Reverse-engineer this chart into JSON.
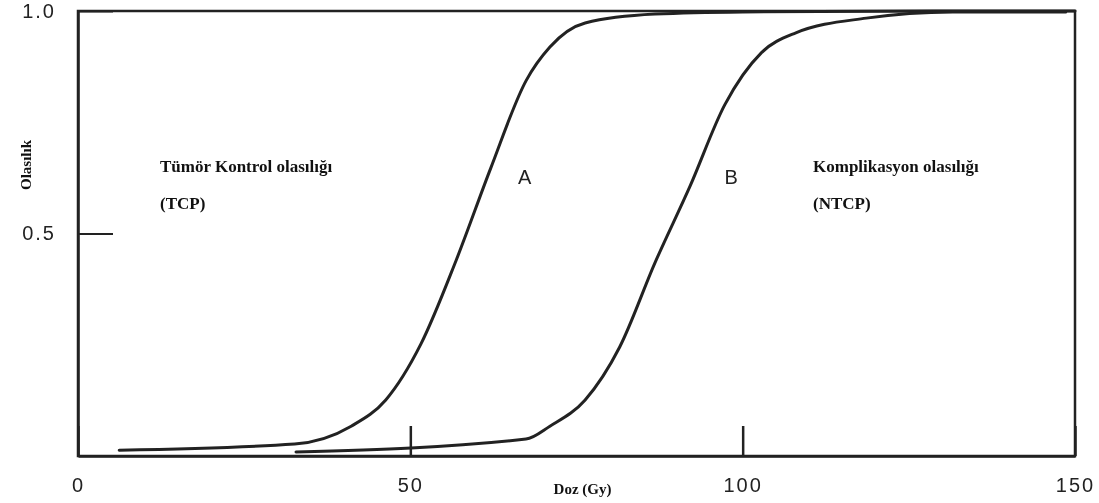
{
  "chart_data": {
    "type": "line",
    "xlabel": "Doz (Gy)",
    "ylabel": "Olasılık",
    "xlim": [
      0,
      150
    ],
    "ylim": [
      0,
      1
    ],
    "xticks": [
      0,
      50,
      100,
      150
    ],
    "yticks": [
      {
        "value": 0.5,
        "label": "0.5"
      },
      {
        "value": 1,
        "label": "1.0"
      }
    ],
    "grid": false,
    "marker": "none",
    "line_style": "solid",
    "annotations": [
      "Tümör Kontrol olasılığı",
      "(TCP)",
      "Komplikasyon olasılığı",
      "(NTCP)"
    ],
    "series": [
      {
        "name": "A",
        "color": "#222222",
        "x": [
          6.2,
          32.6,
          41.1,
          46.3,
          51.6,
          56.9,
          62.1,
          67.4,
          71.0,
          76.3,
          86.8,
          100,
          129,
          150
        ],
        "values": [
          0.013,
          0.027,
          0.067,
          0.126,
          0.252,
          0.44,
          0.647,
          0.843,
          0.919,
          0.973,
          0.993,
          0.998,
          1.0,
          1.0
        ]
      },
      {
        "name": "B",
        "color": "#222222",
        "x": [
          32.8,
          67.4,
          71,
          76.3,
          81.5,
          86.8,
          92.1,
          97.3,
          102.8,
          108,
          118.6,
          131.6,
          148.6
        ],
        "values": [
          0.009,
          0.038,
          0.067,
          0.126,
          0.245,
          0.434,
          0.607,
          0.789,
          0.906,
          0.951,
          0.984,
          0.998,
          0.998
        ]
      }
    ]
  }
}
